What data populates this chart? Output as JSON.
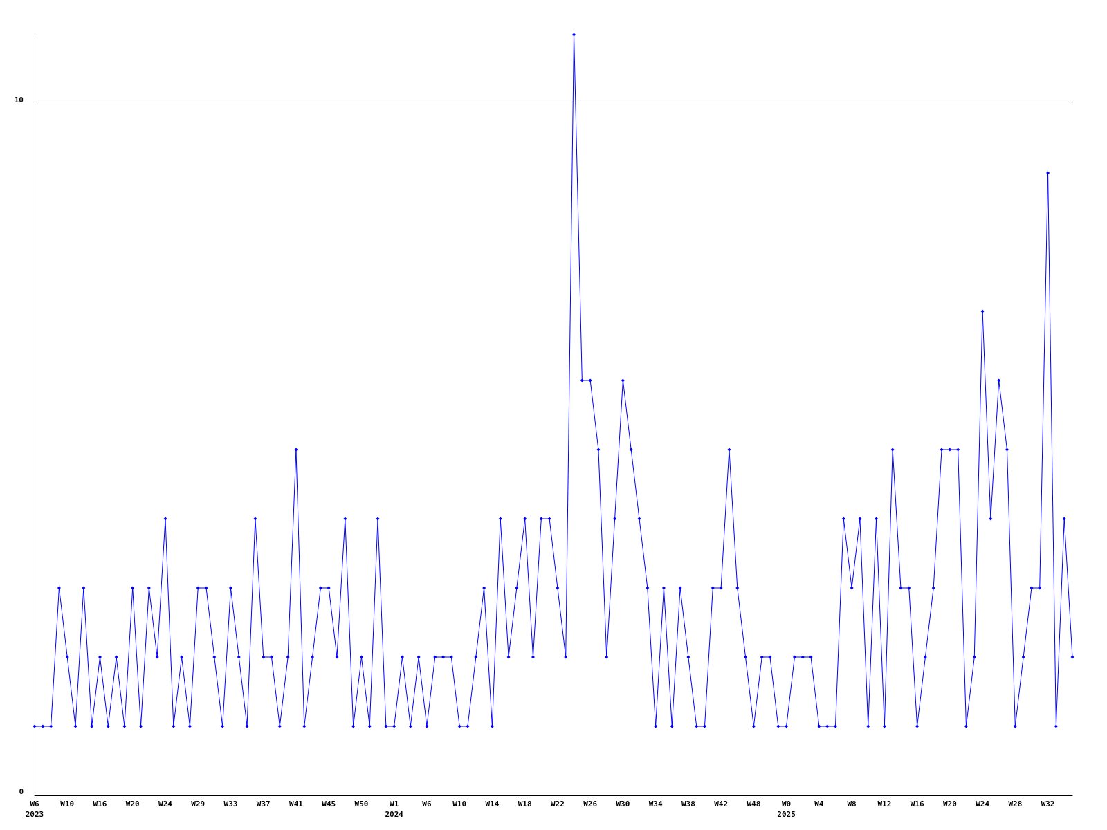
{
  "chart_data": {
    "type": "line",
    "categories": [
      "W6\n2023",
      null,
      null,
      null,
      "W10",
      null,
      null,
      null,
      "W16",
      null,
      null,
      null,
      "W20",
      null,
      null,
      null,
      "W24",
      null,
      null,
      null,
      "W29",
      null,
      null,
      null,
      "W33",
      null,
      null,
      null,
      "W37",
      null,
      null,
      null,
      "W41",
      null,
      null,
      null,
      "W45",
      null,
      null,
      null,
      "W50",
      null,
      null,
      null,
      "W1\n2024",
      null,
      null,
      null,
      "W6",
      null,
      null,
      null,
      "W10",
      null,
      null,
      null,
      "W14",
      null,
      null,
      null,
      "W18",
      null,
      null,
      null,
      "W22",
      null,
      null,
      null,
      "W26",
      null,
      null,
      null,
      "W30",
      null,
      null,
      null,
      "W34",
      null,
      null,
      null,
      "W38",
      null,
      null,
      null,
      "W42",
      null,
      null,
      null,
      "W48",
      null,
      null,
      null,
      "W0\n2025",
      null,
      null,
      null,
      "W4",
      null,
      null,
      null,
      "W8",
      null,
      null,
      null,
      "W12",
      null,
      null,
      null,
      "W16",
      null,
      null,
      null,
      "W20",
      null,
      null,
      null,
      "W24",
      null,
      null,
      null,
      "W28",
      null,
      null,
      null,
      "W32",
      null,
      null,
      null
    ],
    "series": [
      {
        "color": "#0000ff",
        "values": [
          1,
          1,
          1,
          3,
          2,
          1,
          3,
          1,
          2,
          1,
          2,
          1,
          3,
          1,
          3,
          2,
          4,
          1,
          2,
          1,
          3,
          3,
          2,
          1,
          3,
          2,
          1,
          4,
          2,
          2,
          1,
          2,
          5,
          1,
          2,
          3,
          3,
          2,
          4,
          1,
          2,
          1,
          4,
          1,
          1,
          2,
          1,
          2,
          1,
          2,
          2,
          2,
          1,
          1,
          2,
          3,
          1,
          4,
          2,
          3,
          4,
          2,
          4,
          4,
          3,
          2,
          11,
          6,
          6,
          5,
          2,
          4,
          6,
          5,
          4,
          3,
          1,
          3,
          1,
          3,
          2,
          1,
          1,
          3,
          3,
          5,
          3,
          2,
          1,
          2,
          2,
          1,
          1,
          2,
          2,
          2,
          1,
          1,
          1,
          4,
          3,
          4,
          1,
          4,
          1,
          5,
          3,
          3,
          1,
          2,
          3,
          5,
          5,
          5,
          1,
          2,
          7,
          4,
          6,
          5,
          1,
          2,
          3,
          3,
          9,
          1,
          4,
          2
        ]
      }
    ],
    "ylim": [
      0,
      11
    ],
    "yticks": [
      0,
      10
    ],
    "grid": "y",
    "marker": "diamond",
    "line_style": "solid"
  }
}
